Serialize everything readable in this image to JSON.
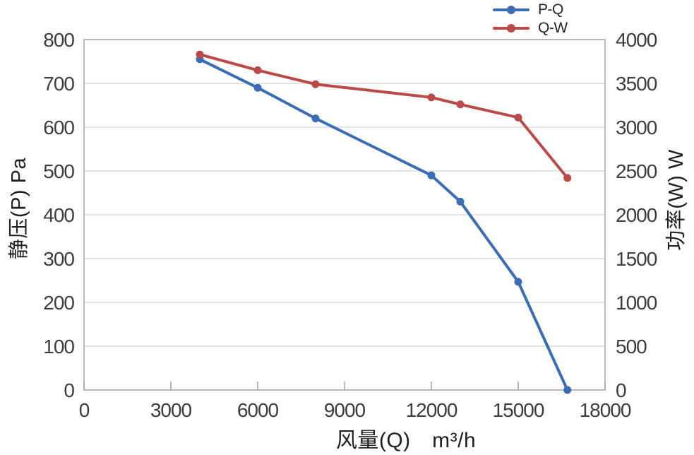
{
  "chart_data": {
    "type": "line",
    "title": "",
    "xlabel": "风量(Q)　m³/h",
    "ylabel_left": "静压(P) Pa",
    "ylabel_right": "功率(W) W",
    "x_range": [
      0,
      18000
    ],
    "y_left_range": [
      0,
      800
    ],
    "y_right_range": [
      0,
      4000
    ],
    "x_ticks": [
      0,
      3000,
      6000,
      9000,
      12000,
      15000,
      18000
    ],
    "y_left_ticks": [
      0,
      100,
      200,
      300,
      400,
      500,
      600,
      700,
      800
    ],
    "y_right_ticks": [
      0,
      500,
      1000,
      1500,
      2000,
      2500,
      3000,
      3500,
      4000
    ],
    "grid": "horizontal-only",
    "legend_position": "top-right",
    "series": [
      {
        "name": "P-Q",
        "axis": "left",
        "color": "#3b6cb4",
        "x": [
          4000,
          6000,
          8000,
          12000,
          13000,
          15000,
          16700
        ],
        "y": [
          755,
          690,
          620,
          490,
          430,
          247,
          0
        ]
      },
      {
        "name": "Q-W",
        "axis": "right",
        "color": "#b94a47",
        "x": [
          4000,
          6000,
          8000,
          12000,
          13000,
          15000,
          16700
        ],
        "y": [
          3830,
          3650,
          3490,
          3340,
          3260,
          3110,
          2420
        ]
      }
    ],
    "colors": {
      "grid": "#dcdcdc",
      "border": "#a3a3a3",
      "tick_text": "#3d3d3d",
      "label_text": "#1f1f1f",
      "background": "#ffffff"
    }
  }
}
